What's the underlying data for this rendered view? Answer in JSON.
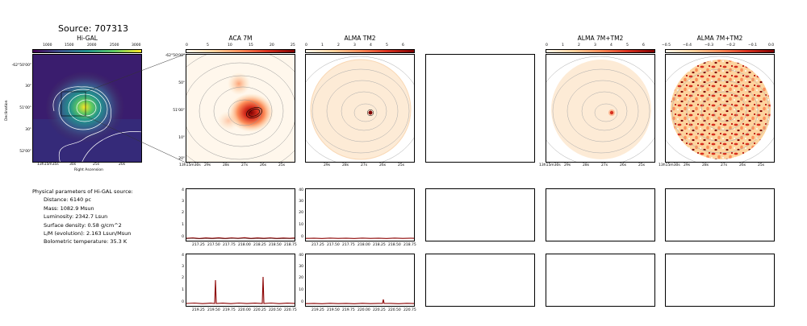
{
  "source_title": "Source: 707313",
  "panels": {
    "higal": {
      "title": "Hi-GAL",
      "cbar_ticks": [
        "1000",
        "1500",
        "2000",
        "2500",
        "3000"
      ],
      "y_ticks": [
        "-62°50'00\"",
        "30\"",
        "51'00\"",
        "30\"",
        "52'00\""
      ],
      "x_ticks": [
        "13h15m35s",
        "30s",
        "25s",
        "20s"
      ],
      "xlabel": "Right Ascension",
      "ylabel": "Declination"
    },
    "aca": {
      "title": "ACA 7M",
      "cbar_ticks": [
        "0",
        "5",
        "10",
        "15",
        "20",
        "25"
      ],
      "y_ticks": [
        "-62°50'00\"",
        "50\"",
        "51'00\"",
        "10\"",
        "20\""
      ],
      "x_ticks": [
        "13h15m30s",
        "29s",
        "28s",
        "27s",
        "26s",
        "25s"
      ]
    },
    "tm2": {
      "title": "ALMA TM2",
      "cbar_ticks": [
        "0",
        "1",
        "2",
        "3",
        "4",
        "5",
        "6"
      ],
      "x_ticks": [
        "29s",
        "28s",
        "27s",
        "26s",
        "25s"
      ]
    },
    "combo": {
      "title": "ALMA 7M+TM2",
      "cbar_ticks": [
        "0",
        "1",
        "2",
        "3",
        "4",
        "5",
        "6"
      ],
      "x_ticks": [
        "13h15m30s",
        "29s",
        "28s",
        "27s",
        "26s",
        "25s"
      ]
    },
    "combo_res": {
      "title": "ALMA 7M+TM2",
      "cbar_ticks": [
        "−0.5",
        "−0.4",
        "−0.3",
        "−0.2",
        "−0.1",
        "0.0"
      ],
      "x_ticks": [
        "13h15m30s",
        "29s",
        "28s",
        "27s",
        "26s",
        "25s"
      ]
    }
  },
  "params": {
    "heading": "Physical parameters of Hi-GAL source:",
    "lines": [
      "Distance: 6140 pc",
      "Mass: 1082.9 Msun",
      "Luminosity: 2342.7 Lsun",
      "Surface density: 0.58 g/cm^2",
      "L/M (evolution): 2.163 Lsun/Msun",
      "Bolometric temperature: 35.3 K"
    ]
  },
  "spectra": {
    "row1": {
      "aca": {
        "y_ticks": [
          "0",
          "1",
          "2",
          "3",
          "4"
        ],
        "x_ticks": [
          "217.25",
          "217.50",
          "217.75",
          "218.00",
          "218.25",
          "218.50",
          "218.75"
        ]
      },
      "tm2": {
        "y_ticks": [
          "0",
          "10",
          "20",
          "30",
          "40"
        ],
        "x_ticks": [
          "217.25",
          "217.50",
          "217.75",
          "218.00",
          "218.25",
          "218.50",
          "218.75"
        ]
      }
    },
    "row2": {
      "aca": {
        "y_ticks": [
          "0",
          "1",
          "2",
          "3",
          "4"
        ],
        "x_ticks": [
          "219.25",
          "219.50",
          "219.75",
          "220.00",
          "220.25",
          "220.50",
          "220.75"
        ]
      },
      "tm2": {
        "y_ticks": [
          "0",
          "10",
          "20",
          "30",
          "40"
        ],
        "x_ticks": [
          "219.25",
          "219.50",
          "219.75",
          "220.00",
          "220.25",
          "220.50",
          "220.75"
        ]
      }
    }
  },
  "colors": {
    "viridis": [
      "#440154",
      "#3b528b",
      "#21918c",
      "#5ec962",
      "#fde725"
    ],
    "orrd": [
      "#fff7ec",
      "#fdd49e",
      "#fc8d59",
      "#d7301f",
      "#7f0000"
    ],
    "spectrum_line": "#8b0000"
  }
}
